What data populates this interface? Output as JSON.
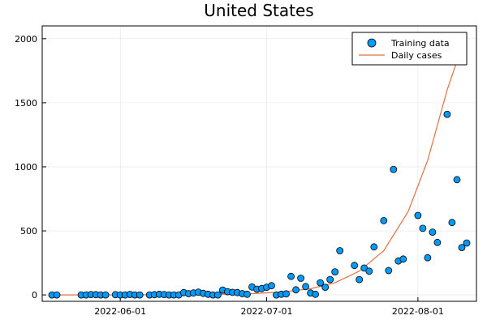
{
  "chart_data": {
    "type": "scatter",
    "title": "United States",
    "xlabel": "",
    "ylabel": "",
    "xlim": [
      "2022-05-16",
      "2022-08-08"
    ],
    "ylim": [
      -50,
      2100
    ],
    "yticks": [
      0,
      500,
      1000,
      1500,
      2000
    ],
    "xticks": [
      {
        "date": "2022-06-01",
        "label": "2022-06-01"
      },
      {
        "date": "2022-07-01",
        "label": "2022-07-01"
      },
      {
        "date": "2022-08-01",
        "label": "2022-08-01"
      }
    ],
    "grid": true,
    "legend_position": "top-right",
    "series": [
      {
        "name": "Training data",
        "kind": "scatter",
        "color": "#009AFA",
        "points": [
          [
            "2022-05-18",
            0
          ],
          [
            "2022-05-19",
            0
          ],
          [
            "2022-05-24",
            0
          ],
          [
            "2022-05-25",
            0
          ],
          [
            "2022-05-26",
            3
          ],
          [
            "2022-05-27",
            2
          ],
          [
            "2022-05-28",
            0
          ],
          [
            "2022-05-29",
            0
          ],
          [
            "2022-05-31",
            2
          ],
          [
            "2022-06-01",
            0
          ],
          [
            "2022-06-02",
            0
          ],
          [
            "2022-06-03",
            4
          ],
          [
            "2022-06-04",
            0
          ],
          [
            "2022-06-05",
            0
          ],
          [
            "2022-06-07",
            0
          ],
          [
            "2022-06-08",
            2
          ],
          [
            "2022-06-09",
            5
          ],
          [
            "2022-06-10",
            3
          ],
          [
            "2022-06-11",
            0
          ],
          [
            "2022-06-12",
            0
          ],
          [
            "2022-06-13",
            0
          ],
          [
            "2022-06-14",
            18
          ],
          [
            "2022-06-15",
            10
          ],
          [
            "2022-06-16",
            15
          ],
          [
            "2022-06-17",
            22
          ],
          [
            "2022-06-18",
            12
          ],
          [
            "2022-06-19",
            5
          ],
          [
            "2022-06-20",
            0
          ],
          [
            "2022-06-21",
            0
          ],
          [
            "2022-06-22",
            38
          ],
          [
            "2022-06-23",
            25
          ],
          [
            "2022-06-24",
            20
          ],
          [
            "2022-06-25",
            18
          ],
          [
            "2022-06-26",
            10
          ],
          [
            "2022-06-27",
            5
          ],
          [
            "2022-06-28",
            62
          ],
          [
            "2022-06-29",
            45
          ],
          [
            "2022-06-30",
            50
          ],
          [
            "2022-07-01",
            60
          ],
          [
            "2022-07-02",
            72
          ],
          [
            "2022-07-03",
            0
          ],
          [
            "2022-07-04",
            5
          ],
          [
            "2022-07-05",
            8
          ],
          [
            "2022-07-06",
            145
          ],
          [
            "2022-07-07",
            40
          ],
          [
            "2022-07-08",
            130
          ],
          [
            "2022-07-09",
            65
          ],
          [
            "2022-07-10",
            15
          ],
          [
            "2022-07-11",
            5
          ],
          [
            "2022-07-12",
            95
          ],
          [
            "2022-07-13",
            60
          ],
          [
            "2022-07-14",
            120
          ],
          [
            "2022-07-15",
            180
          ],
          [
            "2022-07-16",
            345
          ],
          [
            "2022-07-19",
            230
          ],
          [
            "2022-07-20",
            120
          ],
          [
            "2022-07-21",
            210
          ],
          [
            "2022-07-22",
            185
          ],
          [
            "2022-07-23",
            375
          ],
          [
            "2022-07-25",
            580
          ],
          [
            "2022-07-26",
            190
          ],
          [
            "2022-07-27",
            980
          ],
          [
            "2022-07-28",
            265
          ],
          [
            "2022-07-29",
            280
          ],
          [
            "2022-08-01",
            620
          ],
          [
            "2022-08-02",
            520
          ],
          [
            "2022-08-03",
            290
          ],
          [
            "2022-08-04",
            490
          ],
          [
            "2022-08-05",
            410
          ],
          [
            "2022-08-07",
            1410
          ],
          [
            "2022-08-08",
            565
          ],
          [
            "2022-08-09",
            900
          ],
          [
            "2022-08-10",
            370
          ],
          [
            "2022-08-11",
            405
          ]
        ]
      },
      {
        "name": "Daily cases",
        "kind": "line",
        "color": "#E26F46",
        "points": [
          [
            "2022-05-18",
            0
          ],
          [
            "2022-06-10",
            1
          ],
          [
            "2022-06-20",
            4
          ],
          [
            "2022-06-28",
            10
          ],
          [
            "2022-07-04",
            22
          ],
          [
            "2022-07-10",
            48
          ],
          [
            "2022-07-15",
            95
          ],
          [
            "2022-07-20",
            185
          ],
          [
            "2022-07-25",
            345
          ],
          [
            "2022-07-30",
            650
          ],
          [
            "2022-08-03",
            1050
          ],
          [
            "2022-08-07",
            1600
          ],
          [
            "2022-08-11",
            2050
          ]
        ]
      }
    ]
  }
}
